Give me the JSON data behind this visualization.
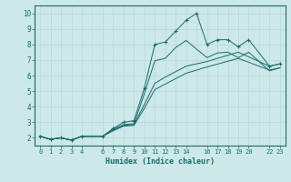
{
  "xlabel": "Humidex (Indice chaleur)",
  "bg_color": "#cce8e8",
  "grid_color": "#b8d8d8",
  "line_color": "#1a6b6b",
  "xlim": [
    -0.5,
    23.5
  ],
  "ylim": [
    1.5,
    10.5
  ],
  "xticks": [
    0,
    1,
    2,
    3,
    4,
    6,
    7,
    8,
    9,
    10,
    11,
    12,
    13,
    14,
    16,
    17,
    18,
    19,
    20,
    22,
    23
  ],
  "yticks": [
    2,
    3,
    4,
    5,
    6,
    7,
    8,
    9,
    10
  ],
  "lines": [
    {
      "x": [
        0,
        1,
        2,
        3,
        4,
        6,
        7,
        8,
        9,
        10,
        11,
        12,
        13,
        14,
        15,
        16,
        17,
        18,
        19,
        20,
        22,
        23
      ],
      "y": [
        2.1,
        1.9,
        2.0,
        1.85,
        2.1,
        2.1,
        2.6,
        3.0,
        3.1,
        5.2,
        8.0,
        8.15,
        8.85,
        9.55,
        10.0,
        8.0,
        8.3,
        8.3,
        7.85,
        8.3,
        6.6,
        6.75
      ],
      "marker": true
    },
    {
      "x": [
        0,
        1,
        2,
        3,
        4,
        6,
        7,
        8,
        9,
        10,
        11,
        12,
        13,
        14,
        16,
        17,
        18,
        19,
        20,
        22,
        23
      ],
      "y": [
        2.1,
        1.9,
        2.0,
        1.85,
        2.1,
        2.1,
        2.55,
        2.85,
        2.9,
        4.85,
        6.95,
        7.1,
        7.8,
        8.25,
        7.15,
        7.45,
        7.5,
        7.15,
        7.5,
        6.3,
        6.5
      ],
      "marker": false
    },
    {
      "x": [
        0,
        1,
        2,
        3,
        4,
        6,
        7,
        8,
        9,
        10,
        11,
        12,
        13,
        14,
        16,
        19,
        22,
        23
      ],
      "y": [
        2.1,
        1.9,
        2.0,
        1.85,
        2.1,
        2.1,
        2.5,
        2.8,
        2.85,
        4.15,
        5.5,
        5.9,
        6.25,
        6.6,
        6.9,
        7.5,
        6.6,
        6.75
      ],
      "marker": false
    },
    {
      "x": [
        0,
        1,
        2,
        3,
        4,
        6,
        7,
        8,
        9,
        10,
        11,
        12,
        13,
        14,
        16,
        19,
        22,
        23
      ],
      "y": [
        2.1,
        1.9,
        2.0,
        1.85,
        2.1,
        2.1,
        2.45,
        2.75,
        2.8,
        3.9,
        5.1,
        5.45,
        5.8,
        6.15,
        6.55,
        7.1,
        6.35,
        6.5
      ],
      "marker": false
    }
  ]
}
